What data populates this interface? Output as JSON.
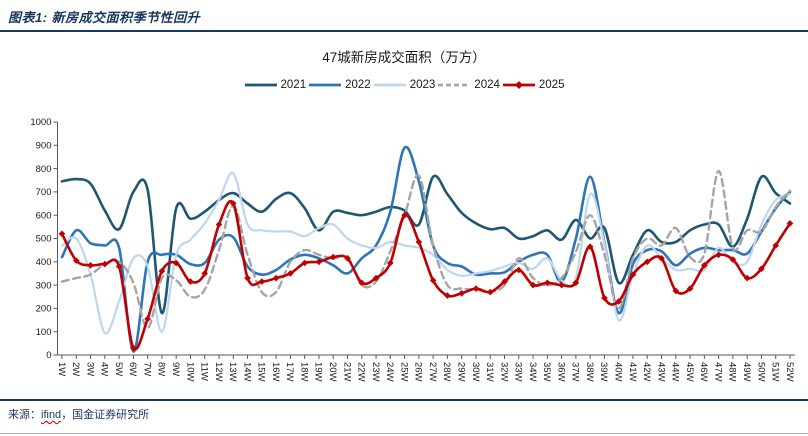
{
  "header": {
    "title": "图表1: 新房成交面积季节性回升"
  },
  "chart": {
    "title": "47城新房成交面积（万方）"
  },
  "footer": {
    "source_label": "来源：",
    "source_name": "ifind",
    "source_rest": "，国金证券研究所"
  },
  "chart_data": {
    "type": "line",
    "title": "47城新房成交面积（万方）",
    "xlabel": "",
    "ylabel": "",
    "ylim": [
      0,
      1000
    ],
    "grid": false,
    "legend_position": "top",
    "y_ticks": [
      0,
      100,
      200,
      300,
      400,
      500,
      600,
      700,
      800,
      900,
      1000
    ],
    "x_labels": [
      "1W",
      "2W",
      "3W",
      "4W",
      "5W",
      "6W",
      "7W",
      "8W",
      "9W",
      "10W",
      "11W",
      "12W",
      "13W",
      "14W",
      "15W",
      "16W",
      "17W",
      "18W",
      "19W",
      "20W",
      "21W",
      "22W",
      "23W",
      "24W",
      "25W",
      "26W",
      "27W",
      "28W",
      "29W",
      "30W",
      "31W",
      "32W",
      "33W",
      "34W",
      "35W",
      "36W",
      "37W",
      "38W",
      "39W",
      "40W",
      "41W",
      "42W",
      "43W",
      "44W",
      "45W",
      "46W",
      "47W",
      "48W",
      "49W",
      "50W",
      "51W",
      "52W"
    ],
    "series": [
      {
        "name": "2021",
        "color": "#1f5673",
        "dash": "solid",
        "marker": "none",
        "width": 2.6,
        "values": [
          745,
          755,
          735,
          620,
          540,
          700,
          710,
          180,
          630,
          585,
          615,
          665,
          695,
          650,
          615,
          670,
          695,
          630,
          535,
          615,
          610,
          600,
          615,
          635,
          620,
          560,
          765,
          690,
          610,
          565,
          540,
          545,
          500,
          510,
          535,
          495,
          580,
          500,
          545,
          310,
          430,
          535,
          485,
          485,
          535,
          560,
          560,
          465,
          585,
          765,
          695,
          650
        ]
      },
      {
        "name": "2022",
        "color": "#2e75b6",
        "dash": "solid",
        "marker": "none",
        "width": 2.6,
        "values": [
          420,
          535,
          480,
          470,
          460,
          15,
          400,
          430,
          430,
          390,
          395,
          495,
          505,
          380,
          345,
          365,
          410,
          430,
          415,
          385,
          350,
          415,
          470,
          615,
          890,
          745,
          470,
          395,
          380,
          345,
          350,
          355,
          400,
          430,
          430,
          315,
          500,
          765,
          485,
          180,
          390,
          450,
          445,
          385,
          435,
          460,
          450,
          450,
          435,
          530,
          630,
          700
        ]
      },
      {
        "name": "2023",
        "color": "#bdd7ee",
        "dash": "solid",
        "marker": "none",
        "width": 2.2,
        "values": [
          470,
          500,
          345,
          95,
          230,
          415,
          380,
          100,
          430,
          495,
          565,
          665,
          780,
          560,
          535,
          530,
          530,
          510,
          545,
          560,
          500,
          470,
          460,
          485,
          470,
          460,
          430,
          365,
          340,
          350,
          360,
          380,
          395,
          370,
          415,
          320,
          330,
          690,
          480,
          150,
          345,
          470,
          415,
          365,
          370,
          365,
          460,
          400,
          400,
          560,
          665,
          690
        ]
      },
      {
        "name": "2024",
        "color": "#a5a5a5",
        "dash": "dashed",
        "marker": "none",
        "width": 2.4,
        "values": [
          315,
          330,
          345,
          390,
          400,
          310,
          115,
          330,
          320,
          250,
          280,
          450,
          640,
          430,
          270,
          270,
          400,
          450,
          430,
          415,
          420,
          300,
          315,
          445,
          600,
          770,
          470,
          300,
          285,
          280,
          270,
          300,
          415,
          330,
          300,
          330,
          443,
          600,
          430,
          200,
          415,
          500,
          470,
          545,
          420,
          435,
          790,
          460,
          535,
          530,
          635,
          705
        ]
      },
      {
        "name": "2025",
        "color": "#c00000",
        "dash": "solid",
        "marker": "diamond",
        "width": 2.6,
        "values": [
          520,
          405,
          385,
          390,
          380,
          30,
          155,
          360,
          395,
          315,
          350,
          560,
          650,
          330,
          315,
          330,
          350,
          395,
          400,
          420,
          415,
          310,
          330,
          395,
          600,
          485,
          320,
          255,
          265,
          285,
          270,
          315,
          365,
          300,
          310,
          300,
          310,
          465,
          245,
          230,
          345,
          400,
          415,
          275,
          285,
          385,
          430,
          410,
          330,
          370,
          470,
          565
        ]
      }
    ]
  }
}
